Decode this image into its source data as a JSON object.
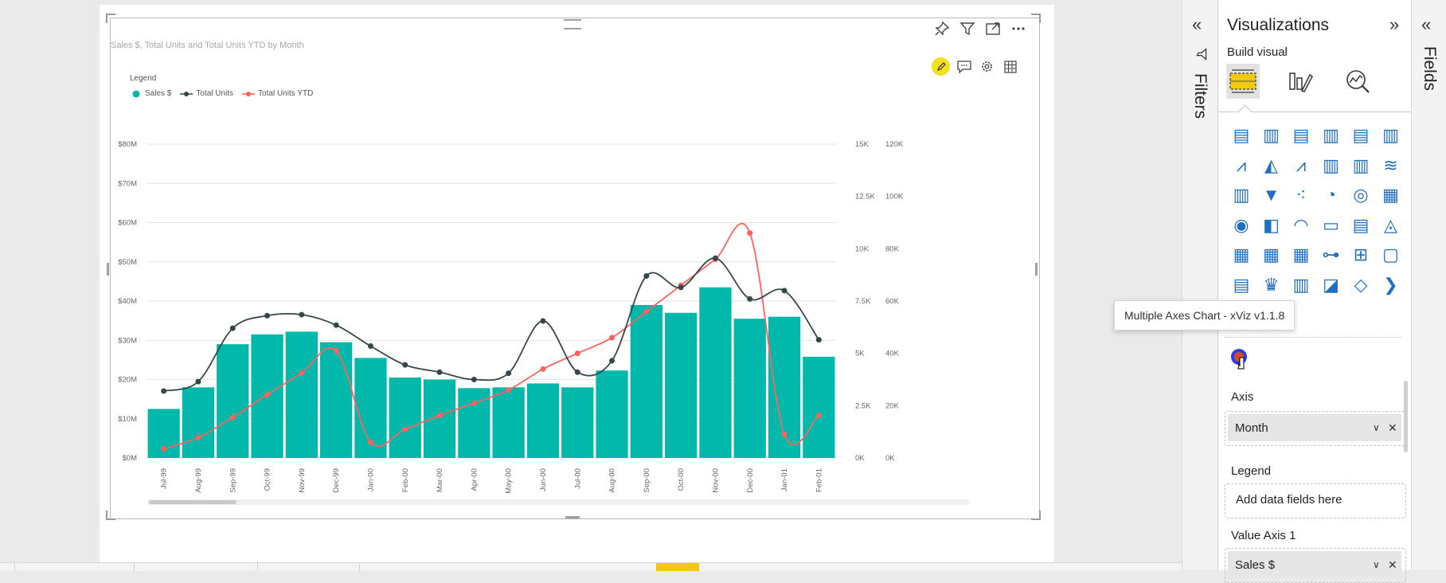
{
  "report": {
    "visual_title": "Sales $, Total Units and Total Units YTD by Month",
    "legend_title": "Legend",
    "header_icons": [
      "pin-icon",
      "filter-icon",
      "focus-mode-icon",
      "more-options-icon"
    ],
    "format_icons": [
      "pencil-icon",
      "comment-icon",
      "settings-icon",
      "table-icon"
    ]
  },
  "chart_data": {
    "type": "bar",
    "title": "Sales $, Total Units and Total Units YTD by Month",
    "categories": [
      "Jul-99",
      "Aug-99",
      "Sep-99",
      "Oct-99",
      "Nov-99",
      "Dec-99",
      "Jan-00",
      "Feb-00",
      "Mar-00",
      "Apr-00",
      "May-00",
      "Jun-00",
      "Jul-00",
      "Aug-00",
      "Sep-00",
      "Oct-00",
      "Nov-00",
      "Dec-00",
      "Jan-01",
      "Feb-01"
    ],
    "series": [
      {
        "name": "Sales $",
        "type": "bar",
        "axis": "y1",
        "color": "#01b8aa",
        "values": [
          12.5,
          18,
          29,
          31.5,
          32.2,
          29.5,
          25.5,
          20.5,
          20,
          17.8,
          18,
          19,
          18,
          22.3,
          39,
          37,
          43.5,
          35.5,
          36,
          25.8
        ]
      },
      {
        "name": "Total Units",
        "type": "line",
        "axis": "y2",
        "color": "#374649",
        "values": [
          3200,
          3650,
          6200,
          6800,
          6850,
          6350,
          5350,
          4450,
          4100,
          3750,
          4050,
          6550,
          4100,
          4650,
          8700,
          8150,
          9550,
          7600,
          8000,
          5650
        ]
      },
      {
        "name": "Total Units YTD",
        "type": "line",
        "axis": "y3",
        "color": "#fd625e",
        "values": [
          3500,
          7800,
          15500,
          24200,
          32500,
          41000,
          6000,
          11000,
          16300,
          21000,
          26000,
          34000,
          40000,
          46000,
          56000,
          66000,
          76000,
          86000,
          9000,
          16300
        ]
      }
    ],
    "y1": {
      "ticks": [
        "$0M",
        "$10M",
        "$20M",
        "$30M",
        "$40M",
        "$50M",
        "$60M",
        "$70M",
        "$80M"
      ],
      "range": [
        0,
        80
      ]
    },
    "y2": {
      "ticks": [
        "0K",
        "2.5K",
        "5K",
        "7.5K",
        "10K",
        "12.5K",
        "15K"
      ],
      "range": [
        0,
        15000
      ]
    },
    "y3": {
      "ticks": [
        "0K",
        "20K",
        "40K",
        "60K",
        "80K",
        "100K",
        "120K"
      ],
      "range": [
        0,
        120000
      ]
    },
    "grid": true,
    "legend_position": "top-left"
  },
  "filters_pane": {
    "label": "Filters"
  },
  "fields_pane": {
    "label": "Fields"
  },
  "visualizations": {
    "title": "Visualizations",
    "build_visual": "Build visual",
    "tooltip": "Multiple Axes Chart - xViz v1.1.8",
    "icons": [
      "stacked-bar-chart-icon",
      "stacked-column-chart-icon",
      "clustered-bar-chart-icon",
      "clustered-column-chart-icon",
      "100-stacked-bar-chart-icon",
      "100-stacked-column-chart-icon",
      "line-chart-icon",
      "area-chart-icon",
      "stacked-area-chart-icon",
      "line-and-stacked-column-chart-icon",
      "line-and-clustered-column-chart-icon",
      "ribbon-chart-icon",
      "waterfall-chart-icon",
      "funnel-chart-icon",
      "scatter-chart-icon",
      "pie-chart-icon",
      "donut-chart-icon",
      "treemap-icon",
      "map-icon",
      "filled-map-icon",
      "gauge-icon",
      "card-icon",
      "multi-row-card-icon",
      "kpi-icon",
      "slicer-icon",
      "table-visual-icon",
      "matrix-icon",
      "key-influencers-icon",
      "decomposition-tree-icon",
      "qa-icon",
      "paginated-report-icon",
      "trophy-icon",
      "smart-narrative-icon",
      "power-apps-icon",
      "power-automate-icon",
      "more-visuals-icon"
    ],
    "wells": {
      "axis": {
        "label": "Axis",
        "value": "Month"
      },
      "legend": {
        "label": "Legend",
        "placeholder": "Add data fields here"
      },
      "value_axis_1": {
        "label": "Value Axis 1",
        "value": "Sales $"
      }
    }
  }
}
